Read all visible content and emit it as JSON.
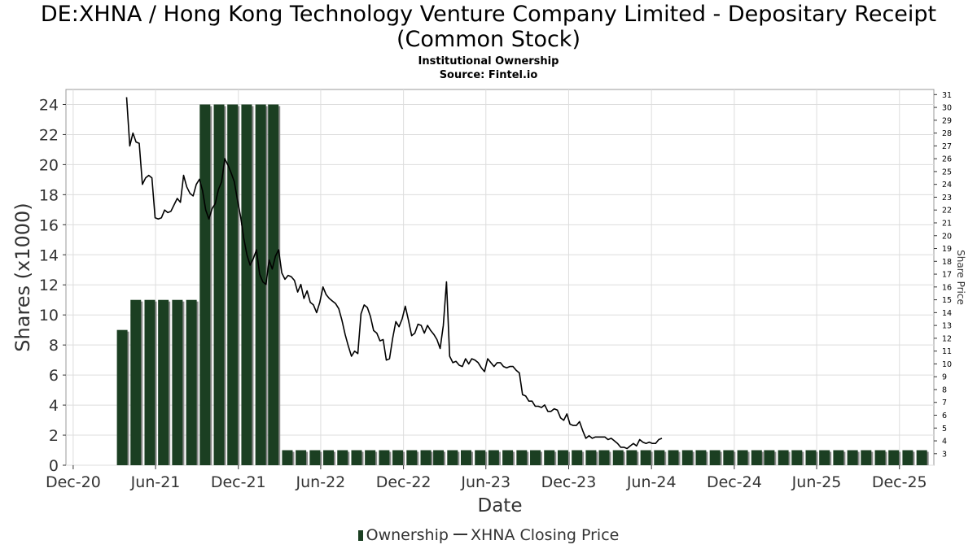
{
  "title": "DE:XHNA / Hong Kong Technology Venture Company Limited - Depositary Receipt (Common Stock)",
  "subtitle": "Institutional Ownership",
  "source": "Source: Fintel.io",
  "legend": {
    "ownership": "Ownership",
    "price": "XHNA Closing Price"
  },
  "colors": {
    "bar": "#1b3f22",
    "bar_shadow": "#8a8a8a",
    "line": "#000000",
    "grid": "#dddddd"
  },
  "chart_data": {
    "type": "bar",
    "xlabel": "Date",
    "ylabel": "Shares (x1000)",
    "y2label": "Share Price",
    "x_ticks": [
      "Dec-20",
      "Jun-21",
      "Dec-21",
      "Jun-22",
      "Dec-22",
      "Jun-23",
      "Dec-23",
      "Jun-24",
      "Dec-24",
      "Jun-25",
      "Dec-25"
    ],
    "x_range": [
      "2020-11-15",
      "2026-02-15"
    ],
    "ylim": [
      0,
      25
    ],
    "y_ticks": [
      0,
      2,
      4,
      6,
      8,
      10,
      12,
      14,
      16,
      18,
      20,
      22,
      24
    ],
    "y2lim": [
      2.1,
      31.4
    ],
    "y2_ticks": [
      3,
      4,
      5,
      6,
      7,
      8,
      9,
      10,
      11,
      12,
      13,
      14,
      15,
      16,
      17,
      18,
      19,
      20,
      21,
      22,
      23,
      24,
      25,
      26,
      27,
      28,
      29,
      30,
      31
    ],
    "grid": true,
    "legend_position": "bottom-center",
    "series": [
      {
        "name": "Ownership",
        "type": "bar",
        "dates": [
          "2021-03-31",
          "2021-04-30",
          "2021-05-31",
          "2021-06-30",
          "2021-07-31",
          "2021-08-31",
          "2021-09-30",
          "2021-10-31",
          "2021-11-30",
          "2021-12-31",
          "2022-01-31",
          "2022-02-28",
          "2022-03-31",
          "2022-04-30",
          "2022-05-31",
          "2022-06-30",
          "2022-07-31",
          "2022-08-31",
          "2022-09-30",
          "2022-10-31",
          "2022-11-30",
          "2022-12-31",
          "2023-01-31",
          "2023-02-28",
          "2023-03-31",
          "2023-04-30",
          "2023-05-31",
          "2023-06-30",
          "2023-07-31",
          "2023-08-31",
          "2023-09-30",
          "2023-10-31",
          "2023-11-30",
          "2023-12-31",
          "2024-01-31",
          "2024-02-29",
          "2024-03-31",
          "2024-04-30",
          "2024-05-31",
          "2024-06-30",
          "2024-07-31",
          "2024-08-31",
          "2024-09-30",
          "2024-10-31",
          "2024-11-30",
          "2024-12-31",
          "2025-01-31",
          "2025-02-28",
          "2025-03-31",
          "2025-04-30",
          "2025-05-31",
          "2025-06-30",
          "2025-07-31",
          "2025-08-31",
          "2025-09-30",
          "2025-10-31",
          "2025-11-30",
          "2025-12-31",
          "2026-01-31"
        ],
        "values": [
          9,
          11,
          11,
          11,
          11,
          11,
          24,
          24,
          24,
          24,
          24,
          24,
          1,
          1,
          1,
          1,
          1,
          1,
          1,
          1,
          1,
          1,
          1,
          1,
          1,
          1,
          1,
          1,
          1,
          1,
          1,
          1,
          1,
          1,
          1,
          1,
          1,
          1,
          1,
          1,
          1,
          1,
          1,
          1,
          1,
          1,
          1,
          1,
          1,
          1,
          1,
          1,
          1,
          1,
          1,
          1,
          1,
          1,
          1
        ]
      },
      {
        "name": "XHNA Closing Price",
        "type": "line",
        "points": [
          [
            "2021-03-29",
            30.8
          ],
          [
            "2021-04-05",
            27.0
          ],
          [
            "2021-04-12",
            28.0
          ],
          [
            "2021-04-19",
            27.3
          ],
          [
            "2021-04-26",
            27.2
          ],
          [
            "2021-05-03",
            24.0
          ],
          [
            "2021-05-10",
            24.5
          ],
          [
            "2021-05-17",
            24.7
          ],
          [
            "2021-05-24",
            24.5
          ],
          [
            "2021-05-31",
            21.4
          ],
          [
            "2021-06-07",
            21.3
          ],
          [
            "2021-06-14",
            21.4
          ],
          [
            "2021-06-21",
            22.0
          ],
          [
            "2021-06-28",
            21.8
          ],
          [
            "2021-07-05",
            21.9
          ],
          [
            "2021-07-12",
            22.4
          ],
          [
            "2021-07-19",
            22.9
          ],
          [
            "2021-07-26",
            22.6
          ],
          [
            "2021-08-02",
            24.7
          ],
          [
            "2021-08-09",
            23.8
          ],
          [
            "2021-08-16",
            23.3
          ],
          [
            "2021-08-23",
            23.1
          ],
          [
            "2021-08-30",
            24.0
          ],
          [
            "2021-09-06",
            24.4
          ],
          [
            "2021-09-13",
            23.5
          ],
          [
            "2021-09-20",
            22.0
          ],
          [
            "2021-09-27",
            21.3
          ],
          [
            "2021-10-04",
            22.1
          ],
          [
            "2021-10-11",
            22.5
          ],
          [
            "2021-10-18",
            23.6
          ],
          [
            "2021-10-25",
            24.2
          ],
          [
            "2021-11-01",
            26.0
          ],
          [
            "2021-11-08",
            25.5
          ],
          [
            "2021-11-15",
            24.9
          ],
          [
            "2021-11-22",
            24.2
          ],
          [
            "2021-11-29",
            22.8
          ],
          [
            "2021-12-06",
            21.5
          ],
          [
            "2021-12-13",
            19.8
          ],
          [
            "2021-12-20",
            18.5
          ],
          [
            "2021-12-27",
            17.7
          ],
          [
            "2022-01-03",
            18.2
          ],
          [
            "2022-01-10",
            18.9
          ],
          [
            "2022-01-17",
            17.0
          ],
          [
            "2022-01-24",
            16.4
          ],
          [
            "2022-01-31",
            16.2
          ],
          [
            "2022-02-07",
            18.1
          ],
          [
            "2022-02-14",
            17.4
          ],
          [
            "2022-02-21",
            18.4
          ],
          [
            "2022-02-28",
            18.9
          ],
          [
            "2022-03-07",
            17.1
          ],
          [
            "2022-03-14",
            16.6
          ],
          [
            "2022-03-21",
            16.9
          ],
          [
            "2022-03-28",
            16.8
          ],
          [
            "2022-04-04",
            16.5
          ],
          [
            "2022-04-11",
            15.6
          ],
          [
            "2022-04-18",
            16.2
          ],
          [
            "2022-04-25",
            15.1
          ],
          [
            "2022-05-02",
            15.7
          ],
          [
            "2022-05-09",
            14.8
          ],
          [
            "2022-05-16",
            14.6
          ],
          [
            "2022-05-23",
            14.0
          ],
          [
            "2022-05-30",
            14.8
          ],
          [
            "2022-06-06",
            16.0
          ],
          [
            "2022-06-13",
            15.4
          ],
          [
            "2022-06-20",
            15.1
          ],
          [
            "2022-06-27",
            14.9
          ],
          [
            "2022-07-04",
            14.7
          ],
          [
            "2022-07-11",
            14.3
          ],
          [
            "2022-07-18",
            13.4
          ],
          [
            "2022-07-25",
            12.3
          ],
          [
            "2022-08-01",
            11.4
          ],
          [
            "2022-08-08",
            10.6
          ],
          [
            "2022-08-15",
            11.0
          ],
          [
            "2022-08-22",
            10.8
          ],
          [
            "2022-08-29",
            13.9
          ],
          [
            "2022-09-05",
            14.6
          ],
          [
            "2022-09-12",
            14.4
          ],
          [
            "2022-09-19",
            13.7
          ],
          [
            "2022-09-26",
            12.6
          ],
          [
            "2022-10-03",
            12.4
          ],
          [
            "2022-10-10",
            11.8
          ],
          [
            "2022-10-17",
            11.9
          ],
          [
            "2022-10-24",
            10.3
          ],
          [
            "2022-10-31",
            10.4
          ],
          [
            "2022-11-07",
            12.0
          ],
          [
            "2022-11-14",
            13.3
          ],
          [
            "2022-11-21",
            12.9
          ],
          [
            "2022-11-28",
            13.5
          ],
          [
            "2022-12-05",
            14.5
          ],
          [
            "2022-12-12",
            13.4
          ],
          [
            "2022-12-19",
            12.2
          ],
          [
            "2022-12-26",
            12.4
          ],
          [
            "2023-01-02",
            13.1
          ],
          [
            "2023-01-09",
            13.0
          ],
          [
            "2023-01-16",
            12.4
          ],
          [
            "2023-01-23",
            13.0
          ],
          [
            "2023-01-30",
            12.6
          ],
          [
            "2023-02-06",
            12.3
          ],
          [
            "2023-02-13",
            11.9
          ],
          [
            "2023-02-20",
            11.2
          ],
          [
            "2023-02-27",
            13.0
          ],
          [
            "2023-03-06",
            16.4
          ],
          [
            "2023-03-13",
            10.6
          ],
          [
            "2023-03-20",
            10.1
          ],
          [
            "2023-03-27",
            10.2
          ],
          [
            "2023-04-03",
            9.9
          ],
          [
            "2023-04-10",
            9.8
          ],
          [
            "2023-04-17",
            10.4
          ],
          [
            "2023-04-24",
            10.0
          ],
          [
            "2023-05-01",
            10.4
          ],
          [
            "2023-05-08",
            10.3
          ],
          [
            "2023-05-15",
            10.1
          ],
          [
            "2023-05-22",
            9.7
          ],
          [
            "2023-05-29",
            9.4
          ],
          [
            "2023-06-05",
            10.4
          ],
          [
            "2023-06-12",
            10.1
          ],
          [
            "2023-06-19",
            9.8
          ],
          [
            "2023-06-26",
            10.1
          ],
          [
            "2023-07-03",
            10.1
          ],
          [
            "2023-07-10",
            9.8
          ],
          [
            "2023-07-17",
            9.7
          ],
          [
            "2023-07-24",
            9.8
          ],
          [
            "2023-07-31",
            9.8
          ],
          [
            "2023-08-07",
            9.5
          ],
          [
            "2023-08-14",
            9.3
          ],
          [
            "2023-08-21",
            7.6
          ],
          [
            "2023-08-28",
            7.5
          ],
          [
            "2023-09-04",
            7.1
          ],
          [
            "2023-09-11",
            7.1
          ],
          [
            "2023-09-18",
            6.7
          ],
          [
            "2023-09-25",
            6.7
          ],
          [
            "2023-10-02",
            6.6
          ],
          [
            "2023-10-09",
            6.8
          ],
          [
            "2023-10-16",
            6.3
          ],
          [
            "2023-10-23",
            6.3
          ],
          [
            "2023-10-30",
            6.5
          ],
          [
            "2023-11-06",
            6.4
          ],
          [
            "2023-11-13",
            5.8
          ],
          [
            "2023-11-20",
            5.6
          ],
          [
            "2023-11-27",
            6.1
          ],
          [
            "2023-12-04",
            5.3
          ],
          [
            "2023-12-11",
            5.2
          ],
          [
            "2023-12-18",
            5.2
          ],
          [
            "2023-12-25",
            5.5
          ],
          [
            "2024-01-01",
            4.8
          ],
          [
            "2024-01-08",
            4.2
          ],
          [
            "2024-01-15",
            4.4
          ],
          [
            "2024-01-22",
            4.2
          ],
          [
            "2024-01-29",
            4.3
          ],
          [
            "2024-02-05",
            4.3
          ],
          [
            "2024-02-12",
            4.3
          ],
          [
            "2024-02-19",
            4.3
          ],
          [
            "2024-02-26",
            4.1
          ],
          [
            "2024-03-04",
            4.2
          ],
          [
            "2024-03-11",
            4.0
          ],
          [
            "2024-03-18",
            3.8
          ],
          [
            "2024-03-25",
            3.5
          ],
          [
            "2024-04-01",
            3.5
          ],
          [
            "2024-04-08",
            3.4
          ],
          [
            "2024-04-15",
            3.6
          ],
          [
            "2024-04-22",
            3.8
          ],
          [
            "2024-04-29",
            3.6
          ],
          [
            "2024-05-06",
            4.1
          ],
          [
            "2024-05-13",
            3.9
          ],
          [
            "2024-05-20",
            3.8
          ],
          [
            "2024-05-27",
            3.9
          ],
          [
            "2024-06-03",
            3.8
          ],
          [
            "2024-06-10",
            3.8
          ],
          [
            "2024-06-17",
            4.1
          ],
          [
            "2024-06-24",
            4.2
          ]
        ]
      }
    ]
  }
}
